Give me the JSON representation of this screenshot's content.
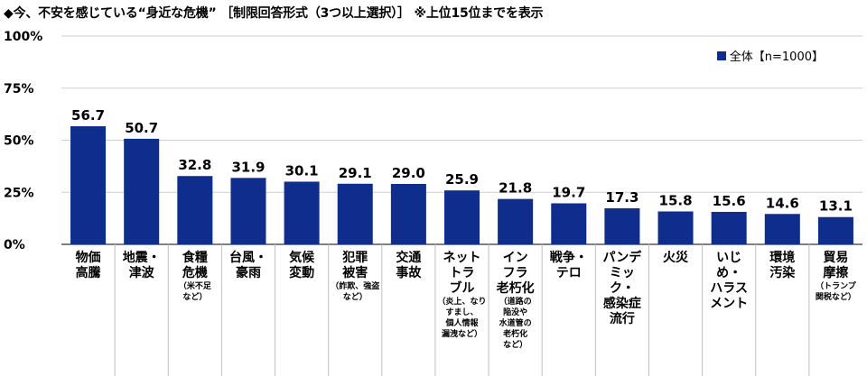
{
  "title": "◆今、不安を感じている“身近な危機” ［制限回答形式（3つ以上選択）］ ※上位15位までを表示",
  "colors": {
    "bar": "#0f2d8c",
    "grid": "#cfcfcf",
    "divider": "#bfbfbf"
  },
  "chart_data": {
    "type": "bar",
    "title": "◆今、不安を感じている“身近な危機” ［制限回答形式（3つ以上選択）］ ※上位15位までを表示",
    "ylim": [
      0,
      100
    ],
    "yticks": [
      "0%",
      "25%",
      "50%",
      "75%",
      "100%"
    ],
    "ytick_values": [
      0,
      25,
      50,
      75,
      100
    ],
    "grid": true,
    "legend_position": "top-right",
    "series": [
      {
        "name": "全体【n=1000】",
        "values": [
          56.7,
          50.7,
          32.8,
          31.9,
          30.1,
          29.1,
          29.0,
          25.9,
          21.8,
          19.7,
          17.3,
          15.8,
          15.6,
          14.6,
          13.1
        ]
      }
    ],
    "value_labels": [
      "56.7",
      "50.7",
      "32.8",
      "31.9",
      "30.1",
      "29.1",
      "29.0",
      "25.9",
      "21.8",
      "19.7",
      "17.3",
      "15.8",
      "15.6",
      "14.6",
      "13.1"
    ],
    "categories": [
      {
        "lines": [
          "物価",
          "高騰"
        ],
        "note": []
      },
      {
        "lines": [
          "地震・",
          "津波"
        ],
        "note": []
      },
      {
        "lines": [
          "食糧",
          "危機"
        ],
        "note": [
          "（米不足",
          "など）"
        ]
      },
      {
        "lines": [
          "台風・",
          "豪雨"
        ],
        "note": []
      },
      {
        "lines": [
          "気候",
          "変動"
        ],
        "note": []
      },
      {
        "lines": [
          "犯罪",
          "被害"
        ],
        "note": [
          "（詐欺、強盗",
          "など）"
        ]
      },
      {
        "lines": [
          "交通",
          "事故"
        ],
        "note": []
      },
      {
        "lines": [
          "ネット",
          "トラ",
          "ブル"
        ],
        "note": [
          "（炎上、なり",
          "すまし、",
          "個人情報",
          "漏洩など）"
        ]
      },
      {
        "lines": [
          "イン",
          "フラ",
          "老朽化"
        ],
        "note": [
          "（道路の",
          "陥没や",
          "水道管の",
          "老朽化",
          "など）"
        ]
      },
      {
        "lines": [
          "戦争・",
          "テロ"
        ],
        "note": []
      },
      {
        "lines": [
          "パンデ",
          "ミッ",
          "ク・",
          "感染症",
          "流行"
        ],
        "note": []
      },
      {
        "lines": [
          "火災"
        ],
        "note": []
      },
      {
        "lines": [
          "いじ",
          "め・",
          "ハラス",
          "メント"
        ],
        "note": []
      },
      {
        "lines": [
          "環境",
          "汚染"
        ],
        "note": []
      },
      {
        "lines": [
          "貿易",
          "摩擦"
        ],
        "note": [
          "（トランプ",
          "関税など）"
        ]
      }
    ]
  }
}
